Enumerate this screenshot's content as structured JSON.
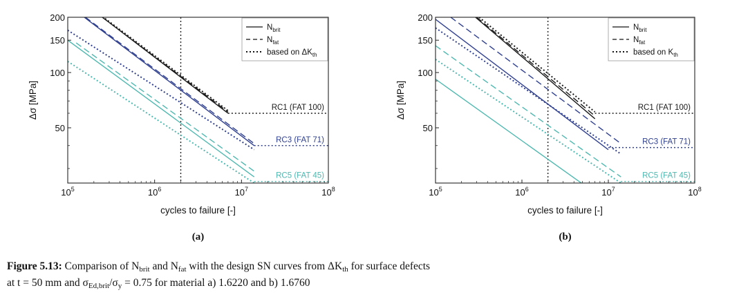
{
  "chart_data": [
    {
      "type": "line",
      "panel_label": "(a)",
      "xlabel": "cycles to failure [-]",
      "ylabel": "Δσ [MPa]",
      "xscale": "log",
      "yscale": "log",
      "xlim": [
        100000,
        100000000
      ],
      "ylim": [
        25,
        200
      ],
      "xticks": [
        "10^5",
        "10^6",
        "10^7",
        "10^8"
      ],
      "yticks": [
        50,
        100,
        150,
        200
      ],
      "vline_x": 2000000,
      "legend": {
        "position": "top-right",
        "entries": [
          {
            "label": "N",
            "sub": "brit",
            "style": "solid"
          },
          {
            "label": "N",
            "sub": "fat",
            "style": "dashed"
          },
          {
            "label": "based on ΔK",
            "sub": "th",
            "style": "dotted"
          }
        ]
      },
      "series": [
        {
          "name": "RC1 N_brit",
          "class": "RC1",
          "style": "solid",
          "color": "#1a1a1a",
          "x": [
            250000,
            7000000
          ],
          "y": [
            200,
            60
          ]
        },
        {
          "name": "RC1 N_fat",
          "class": "RC1",
          "style": "dashed",
          "color": "#1a1a1a",
          "x": [
            250000,
            7000000
          ],
          "y": [
            200,
            61
          ]
        },
        {
          "name": "RC1 ΔK_th",
          "class": "RC1",
          "style": "dotted",
          "color": "#1a1a1a",
          "x": [
            250000,
            7000000
          ],
          "y": [
            202,
            62
          ]
        },
        {
          "name": "RC3 N_brit",
          "class": "RC3",
          "style": "solid",
          "color": "#2f3f8f",
          "x": [
            155000,
            14000000
          ],
          "y": [
            200,
            40
          ]
        },
        {
          "name": "RC3 N_fat",
          "class": "RC3",
          "style": "dashed",
          "color": "#2f3f8f",
          "x": [
            160000,
            14000000
          ],
          "y": [
            200,
            41
          ]
        },
        {
          "name": "RC3 ΔK_th",
          "class": "RC3",
          "style": "dotted",
          "color": "#2f3f8f",
          "x": [
            100000,
            14000000
          ],
          "y": [
            170,
            38
          ]
        },
        {
          "name": "RC5 N_brit",
          "class": "RC5",
          "style": "solid",
          "color": "#4fb8b0",
          "x": [
            100000,
            14000000
          ],
          "y": [
            150,
            27
          ]
        },
        {
          "name": "RC5 N_fat",
          "class": "RC5",
          "style": "dashed",
          "color": "#4fb8b0",
          "x": [
            125000,
            14000000
          ],
          "y": [
            145,
            29
          ]
        },
        {
          "name": "RC5 ΔK_th",
          "class": "RC5",
          "style": "dotted",
          "color": "#4fb8b0",
          "x": [
            100000,
            14000000
          ],
          "y": [
            115,
            25
          ]
        }
      ],
      "fat_lines": [
        {
          "label": "RC1 (FAT 100)",
          "color": "#1a1a1a",
          "y": 60,
          "x_start": 7000000
        },
        {
          "label": "RC3 (FAT 71)",
          "color": "#2f3f8f",
          "y": 40,
          "x_start": 14000000
        },
        {
          "label": "RC5 (FAT 45)",
          "color": "#4fb8b0",
          "y": 25.5,
          "x_start": 14000000
        }
      ]
    },
    {
      "type": "line",
      "panel_label": "(b)",
      "xlabel": "cycles to failure [-]",
      "ylabel": "Δσ [MPa]",
      "xscale": "log",
      "yscale": "log",
      "xlim": [
        100000,
        100000000
      ],
      "ylim": [
        25,
        200
      ],
      "xticks": [
        "10^5",
        "10^6",
        "10^7",
        "10^8"
      ],
      "yticks": [
        50,
        100,
        150,
        200
      ],
      "vline_x": 2000000,
      "legend": {
        "position": "top-right",
        "entries": [
          {
            "label": "N",
            "sub": "brit",
            "style": "solid"
          },
          {
            "label": "N",
            "sub": "fat",
            "style": "dashed"
          },
          {
            "label": "based on K",
            "sub": "th",
            "style": "dotted"
          }
        ]
      },
      "series": [
        {
          "name": "RC1 N_brit",
          "class": "RC1",
          "style": "solid",
          "color": "#1a1a1a",
          "x": [
            290000,
            7000000
          ],
          "y": [
            200,
            56
          ]
        },
        {
          "name": "RC1 N_fat",
          "class": "RC1",
          "style": "dashed",
          "color": "#1a1a1a",
          "x": [
            300000,
            7000000
          ],
          "y": [
            200,
            58
          ]
        },
        {
          "name": "RC1 ΔK_th",
          "class": "RC1",
          "style": "dotted",
          "color": "#1a1a1a",
          "x": [
            320000,
            7000000
          ],
          "y": [
            200,
            61
          ]
        },
        {
          "name": "RC3 N_brit",
          "class": "RC3",
          "style": "solid",
          "color": "#2f3f8f",
          "x": [
            100000,
            10000000
          ],
          "y": [
            195,
            38
          ]
        },
        {
          "name": "RC3 N_fat",
          "class": "RC3",
          "style": "dashed",
          "color": "#2f3f8f",
          "x": [
            150000,
            14000000
          ],
          "y": [
            200,
            41
          ]
        },
        {
          "name": "RC3 ΔK_th",
          "class": "RC3",
          "style": "dotted",
          "color": "#2f3f8f",
          "x": [
            100000,
            14000000
          ],
          "y": [
            175,
            36
          ]
        },
        {
          "name": "RC5 N_brit",
          "class": "RC5",
          "style": "solid",
          "color": "#4fb8b0",
          "x": [
            100000,
            5500000
          ],
          "y": [
            92,
            24
          ]
        },
        {
          "name": "RC5 N_fat",
          "class": "RC5",
          "style": "dashed",
          "color": "#4fb8b0",
          "x": [
            100000,
            14000000
          ],
          "y": [
            140,
            27
          ]
        },
        {
          "name": "RC5 ΔK_th",
          "class": "RC5",
          "style": "dotted",
          "color": "#4fb8b0",
          "x": [
            100000,
            14000000
          ],
          "y": [
            118,
            25
          ]
        }
      ],
      "fat_lines": [
        {
          "label": "RC1 (FAT 100)",
          "color": "#1a1a1a",
          "y": 60,
          "x_start": 7000000
        },
        {
          "label": "RC3 (FAT 71)",
          "color": "#2f3f8f",
          "y": 39,
          "x_start": 10000000
        },
        {
          "label": "RC5 (FAT 45)",
          "color": "#4fb8b0",
          "y": 25.5,
          "x_start": 14000000
        }
      ]
    }
  ],
  "caption": {
    "label": "Figure 5.13:",
    "t1": "Comparison of N",
    "sub_brit": "brit",
    "t2": "and N",
    "sub_fat": "fat",
    "t3": "with the design SN curves from ΔK",
    "sub_th": "th",
    "t4": "for surface defects",
    "line2a": "at t = 50 mm and σ",
    "sub_ed": "Ed,brit",
    "line2b": "/σ",
    "sub_y": "y",
    "line2c": "= 0.75 for material a) 1.6220 and b) 1.6760"
  }
}
